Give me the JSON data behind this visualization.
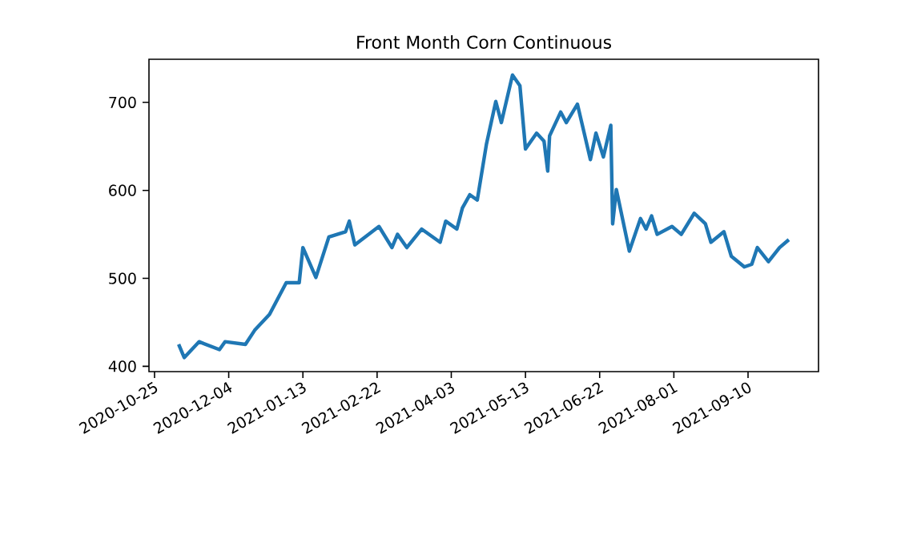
{
  "chart_data": {
    "type": "line",
    "title": "Front Month Corn Continuous",
    "x": [
      "2020-11-07",
      "2020-11-10",
      "2020-11-18",
      "2020-11-29",
      "2020-12-02",
      "2020-12-13",
      "2020-12-18",
      "2020-12-26",
      "2021-01-04",
      "2021-01-11",
      "2021-01-13",
      "2021-01-20",
      "2021-01-27",
      "2021-02-05",
      "2021-02-07",
      "2021-02-10",
      "2021-02-23",
      "2021-03-02",
      "2021-03-05",
      "2021-03-10",
      "2021-03-18",
      "2021-03-28",
      "2021-03-31",
      "2021-04-06",
      "2021-04-09",
      "2021-04-13",
      "2021-04-17",
      "2021-04-22",
      "2021-04-27",
      "2021-04-30",
      "2021-05-06",
      "2021-05-10",
      "2021-05-13",
      "2021-05-19",
      "2021-05-23",
      "2021-05-25",
      "2021-05-26",
      "2021-06-01",
      "2021-06-04",
      "2021-06-10",
      "2021-06-14",
      "2021-06-17",
      "2021-06-20",
      "2021-06-24",
      "2021-06-28",
      "2021-06-29",
      "2021-07-01",
      "2021-07-08",
      "2021-07-14",
      "2021-07-17",
      "2021-07-20",
      "2021-07-23",
      "2021-07-31",
      "2021-08-05",
      "2021-08-12",
      "2021-08-18",
      "2021-08-21",
      "2021-08-28",
      "2021-09-01",
      "2021-09-08",
      "2021-09-12",
      "2021-09-15",
      "2021-09-21",
      "2021-09-27",
      "2021-10-02"
    ],
    "series": [
      {
        "color": "#1f77b4",
        "values": [
          425,
          410,
          428,
          419,
          428,
          425,
          441,
          459,
          495,
          495,
          535,
          501,
          547,
          553,
          565,
          538,
          559,
          535,
          550,
          535,
          556,
          541,
          565,
          556,
          580,
          595,
          589,
          653,
          701,
          677,
          731,
          719,
          647,
          665,
          656,
          622,
          662,
          689,
          677,
          698,
          662,
          635,
          665,
          638,
          674,
          562,
          601,
          531,
          568,
          556,
          571,
          550,
          559,
          550,
          574,
          562,
          541,
          553,
          525,
          513,
          516,
          535,
          519,
          535,
          544
        ]
      }
    ],
    "xlim": [
      "2020-10-22",
      "2021-10-18"
    ],
    "ylim": [
      394,
      749
    ],
    "xticks": [
      "2020-10-25",
      "2020-12-04",
      "2021-01-13",
      "2021-02-22",
      "2021-04-03",
      "2021-05-13",
      "2021-06-22",
      "2021-08-01",
      "2021-09-10"
    ],
    "yticks": [
      400,
      500,
      600,
      700
    ]
  }
}
